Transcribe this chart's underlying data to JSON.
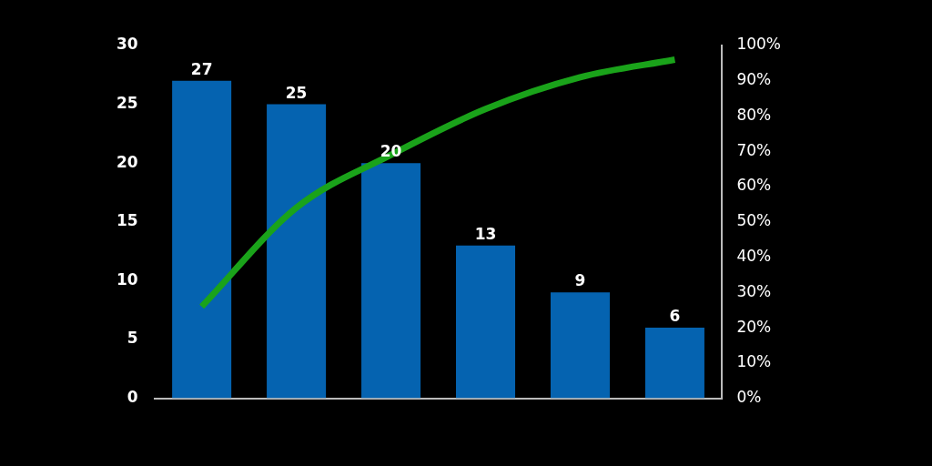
{
  "chart_data": {
    "type": "bar",
    "categories": [
      null,
      null,
      null,
      null,
      null,
      null
    ],
    "series": [
      {
        "color": "#0563b0",
        "values": [
          27,
          25,
          20,
          13,
          9,
          6
        ],
        "value_labels": [
          "27",
          "25",
          "20",
          "13",
          "9",
          "6"
        ]
      },
      {
        "type": "line",
        "axis": "y2",
        "color": "#1aa31a",
        "values": [
          26,
          54,
          69,
          82,
          91,
          96
        ]
      }
    ],
    "ylim": [
      0,
      30
    ],
    "yticks": [
      0,
      5,
      10,
      15,
      20,
      25,
      30
    ],
    "y2lim": [
      0,
      100
    ],
    "y2ticks": [
      {
        "value": 0,
        "label": "0%"
      },
      {
        "value": 10,
        "label": "10%"
      },
      {
        "value": 20,
        "label": "20%"
      },
      {
        "value": 30,
        "label": "30%"
      },
      {
        "value": 40,
        "label": "40%"
      },
      {
        "value": 50,
        "label": "50%"
      },
      {
        "value": 60,
        "label": "60%"
      },
      {
        "value": 70,
        "label": "70%"
      },
      {
        "value": 80,
        "label": "80%"
      },
      {
        "value": 90,
        "label": "90%"
      },
      {
        "value": 100,
        "label": "100%"
      }
    ],
    "grid": false,
    "legend": false,
    "marker": "none",
    "line_style": "solid"
  }
}
